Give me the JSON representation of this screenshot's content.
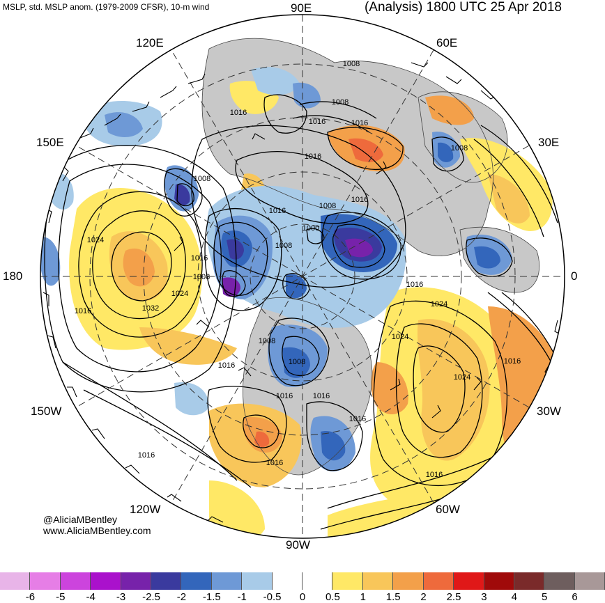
{
  "header": {
    "left_title": "MSLP, std. MSLP anom. (1979-2009 CFSR), 10-m wind",
    "right_title": "(Analysis) 1800 UTC 25 Apr 2018"
  },
  "longitude_labels": {
    "e90": "90E",
    "e60": "60E",
    "e30": "30E",
    "zero": "0",
    "w30": "30W",
    "w60": "60W",
    "w90": "90W",
    "w120": "120W",
    "w150": "150W",
    "d180": "180",
    "e150": "150E",
    "e120": "120E"
  },
  "isobar_labels": [
    "1008",
    "1008",
    "1016",
    "1016",
    "1016",
    "1008",
    "1008",
    "1016",
    "1016",
    "1008",
    "1024",
    "1016",
    "1016",
    "1000",
    "1008",
    "1008",
    "1016",
    "1032",
    "1016",
    "1024",
    "1024",
    "1016",
    "1008",
    "1024",
    "1008",
    "1024",
    "1016",
    "1016",
    "1016",
    "1016",
    "1016",
    "1016",
    "1016"
  ],
  "credit": {
    "handle": "@AliciaMBentley",
    "website": "www.AliciaMBentley.com"
  },
  "colorbar": {
    "colors": [
      "#e8b4e8",
      "#e67ee6",
      "#cc44dd",
      "#aa11cc",
      "#7722aa",
      "#3a3a9e",
      "#3366bb",
      "#6e99d6",
      "#a8cbe8",
      "#ffffff",
      "#ffffff",
      "#ffe866",
      "#f8c65a",
      "#f3a04a",
      "#ee6a3c",
      "#e01818",
      "#a00a0a",
      "#7a2a2a",
      "#6e5e5e",
      "#a89898"
    ],
    "ticks": [
      "-6",
      "-5",
      "-4",
      "-3",
      "-2.5",
      "-2",
      "-1.5",
      "-1",
      "-0.5",
      "0",
      "0.5",
      "1",
      "1.5",
      "2",
      "2.5",
      "3",
      "4",
      "5",
      "6"
    ]
  }
}
